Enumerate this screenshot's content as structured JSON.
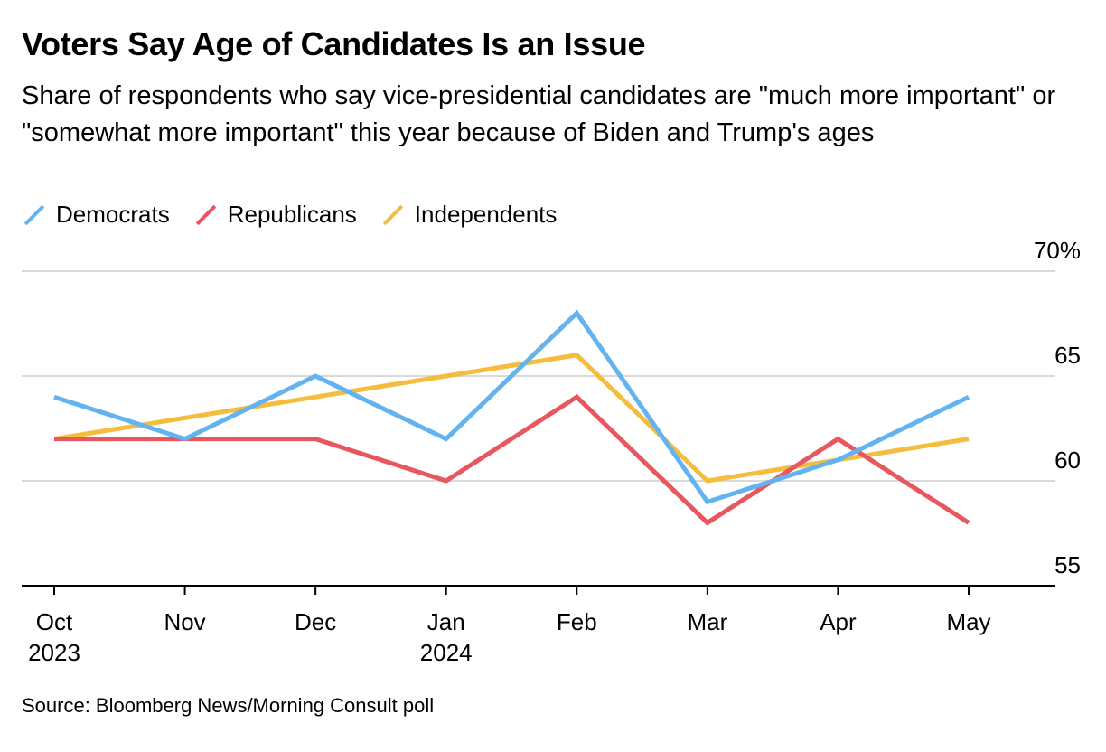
{
  "header": {
    "title": "Voters Say Age of Candidates Is an Issue",
    "subtitle": "Share of respondents who say vice-presidential candidates are \"much more important\" or \"somewhat more important\" this year because of Biden and Trump's ages"
  },
  "source": "Source: Bloomberg News/Morning Consult poll",
  "chart_data": {
    "type": "line",
    "title": "Voters Say Age of Candidates Is an Issue",
    "xlabel": "",
    "ylabel": "",
    "categories": [
      "Oct 2023",
      "Nov",
      "Dec",
      "Jan 2024",
      "Feb",
      "Mar",
      "Apr",
      "May"
    ],
    "x_tick_labels": [
      [
        "Oct",
        "2023"
      ],
      [
        "Nov"
      ],
      [
        "Dec"
      ],
      [
        "Jan",
        "2024"
      ],
      [
        "Feb"
      ],
      [
        "Mar"
      ],
      [
        "Apr"
      ],
      [
        "May"
      ]
    ],
    "y_ticks": [
      70,
      65,
      60,
      55
    ],
    "y_tick_labels": [
      "70%",
      "65",
      "60",
      "55"
    ],
    "ylim": [
      55,
      70
    ],
    "grid": true,
    "legend_position": "top-left",
    "series": [
      {
        "name": "Democrats",
        "color": "#64b3f1",
        "values": [
          64,
          62,
          65,
          62,
          68,
          59,
          61,
          64
        ]
      },
      {
        "name": "Republicans",
        "color": "#e8575d",
        "values": [
          62,
          62,
          62,
          60,
          64,
          58,
          62,
          58
        ]
      },
      {
        "name": "Independents",
        "color": "#f5bd3e",
        "values": [
          62,
          63,
          64,
          65,
          66,
          60,
          61,
          62
        ]
      }
    ]
  }
}
